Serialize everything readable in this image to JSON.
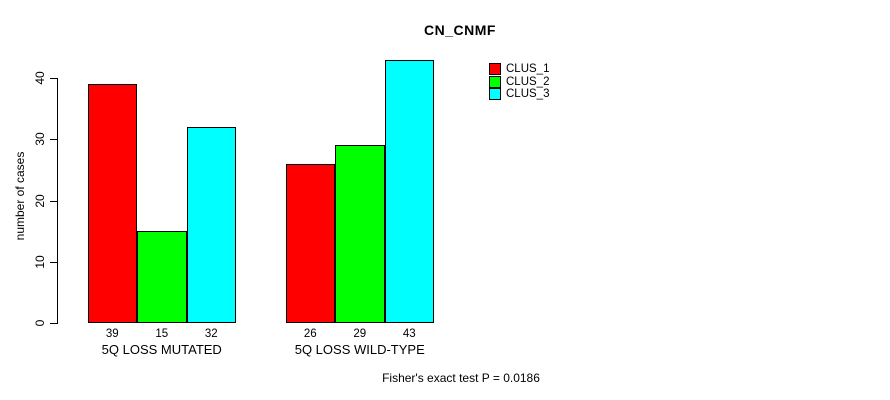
{
  "title": "CN_CNMF",
  "chart_data": {
    "type": "bar",
    "categories": [
      "5Q LOSS MUTATED",
      "5Q LOSS WILD-TYPE"
    ],
    "series": [
      {
        "name": "CLUS_1",
        "color": "#ff0000",
        "values": [
          39,
          26
        ]
      },
      {
        "name": "CLUS_2",
        "color": "#00ff00",
        "values": [
          15,
          29
        ]
      },
      {
        "name": "CLUS_3",
        "color": "#00ffff",
        "values": [
          32,
          43
        ]
      }
    ],
    "bar_value_labels": [
      [
        "39",
        "15",
        "32"
      ],
      [
        "26",
        "29",
        "43"
      ]
    ],
    "title": "CN_CNMF",
    "xlabel": "",
    "ylabel": "number of cases",
    "yticks": [
      0,
      10,
      20,
      30,
      40
    ],
    "ylim": [
      0,
      44
    ],
    "grid": false,
    "legend_position": "top-right",
    "legend_entries": [
      "CLUS_1",
      "CLUS_2",
      "CLUS_3"
    ],
    "bar_border_color": "#000000"
  },
  "footer": {
    "fisher_test_text": "Fisher's exact test P = 0.0186"
  }
}
